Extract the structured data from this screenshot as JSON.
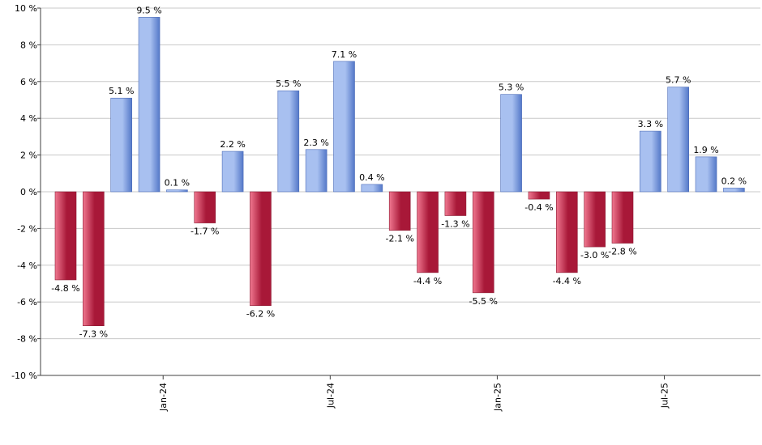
{
  "chart_data": {
    "type": "bar",
    "title": "",
    "xlabel": "",
    "ylabel": "",
    "ylim": [
      -10,
      10
    ],
    "y_ticks": [
      10,
      8,
      6,
      4,
      2,
      0,
      -2,
      -4,
      -6,
      -8,
      -10
    ],
    "y_tick_suffix": " %",
    "grid": true,
    "legend": "none",
    "x_tick_labels": [
      {
        "label": "Jan-24",
        "after_index": 3
      },
      {
        "label": "Jul-24",
        "after_index": 9
      },
      {
        "label": "Jan-25",
        "after_index": 15
      },
      {
        "label": "Jul-25",
        "after_index": 21
      }
    ],
    "values": [
      -4.8,
      -7.3,
      5.1,
      9.5,
      0.1,
      -1.7,
      2.2,
      -6.2,
      5.5,
      2.3,
      7.1,
      0.4,
      -2.1,
      -4.4,
      -1.3,
      -5.5,
      5.3,
      -0.4,
      -4.4,
      -3.0,
      -2.8,
      3.3,
      5.7,
      1.9,
      0.2
    ],
    "labels": [
      "-4.8 %",
      "-7.3 %",
      "5.1 %",
      "9.5 %",
      "0.1 %",
      "-1.7 %",
      "2.2 %",
      "-6.2 %",
      "5.5 %",
      "2.3 %",
      "7.1 %",
      "0.4 %",
      "-2.1 %",
      "-4.4 %",
      "-1.3 %",
      "-5.5 %",
      "5.3 %",
      "-0.4 %",
      "-4.4 %",
      "-3.0 %",
      "-2.8 %",
      "3.3 %",
      "5.7 %",
      "1.9 %",
      "0.2 %"
    ],
    "colors": {
      "positive_light": "#a8c0f0",
      "positive_dark": "#5478c8",
      "negative_light": "#f07890",
      "negative_dark": "#a81838",
      "grid": "#c8c8c8",
      "axis": "#404040"
    }
  }
}
